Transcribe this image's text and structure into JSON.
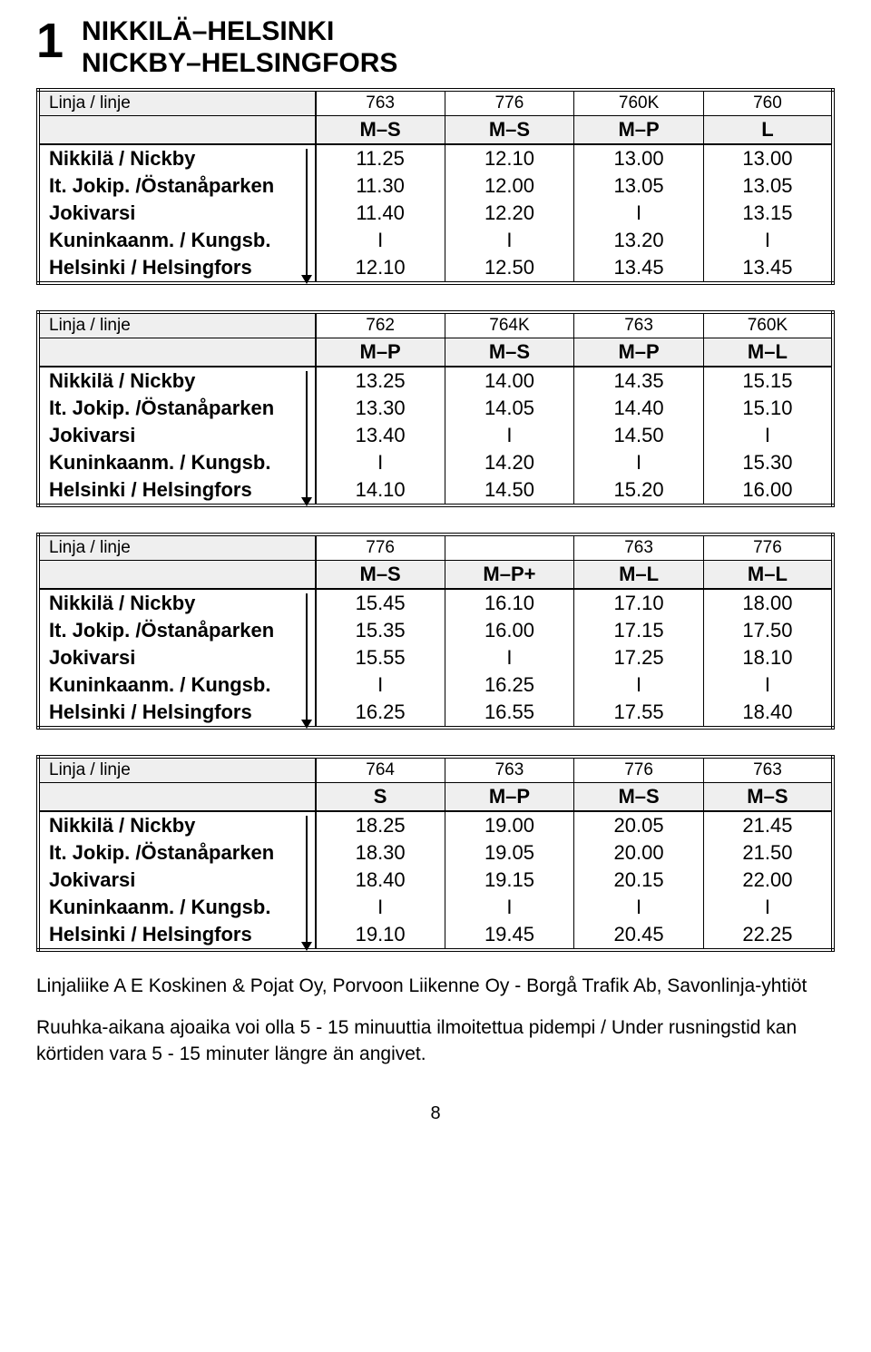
{
  "route_number": "1",
  "title_line1": "NIKKILÄ–HELSINKI",
  "title_line2": "NICKBY–HELSINGFORS",
  "linja_label": "Linja / linje",
  "stops": [
    "Nikkilä / Nickby",
    "It. Jokip. /Östanåparken",
    "Jokivarsi",
    "Kuninkaanm. / Kungsb.",
    "Helsinki / Helsingfors"
  ],
  "tables": [
    {
      "lines": [
        "763",
        "776",
        "760K",
        "760"
      ],
      "days": [
        "M–S",
        "M–S",
        "M–P",
        "L"
      ],
      "rows": [
        [
          "11.25",
          "12.10",
          "13.00",
          "13.00"
        ],
        [
          "11.30",
          "12.00",
          "13.05",
          "13.05"
        ],
        [
          "11.40",
          "12.20",
          "I",
          "13.15"
        ],
        [
          "I",
          "I",
          "13.20",
          "I"
        ],
        [
          "12.10",
          "12.50",
          "13.45",
          "13.45"
        ]
      ]
    },
    {
      "lines": [
        "762",
        "764K",
        "763",
        "760K"
      ],
      "days": [
        "M–P",
        "M–S",
        "M–P",
        "M–L"
      ],
      "rows": [
        [
          "13.25",
          "14.00",
          "14.35",
          "15.15"
        ],
        [
          "13.30",
          "14.05",
          "14.40",
          "15.10"
        ],
        [
          "13.40",
          "I",
          "14.50",
          "I"
        ],
        [
          "I",
          "14.20",
          "I",
          "15.30"
        ],
        [
          "14.10",
          "14.50",
          "15.20",
          "16.00"
        ]
      ]
    },
    {
      "lines": [
        "776",
        "",
        "763",
        "776"
      ],
      "days": [
        "M–S",
        "M–P+",
        "M–L",
        "M–L"
      ],
      "rows": [
        [
          "15.45",
          "16.10",
          "17.10",
          "18.00"
        ],
        [
          "15.35",
          "16.00",
          "17.15",
          "17.50"
        ],
        [
          "15.55",
          "I",
          "17.25",
          "18.10"
        ],
        [
          "I",
          "16.25",
          "I",
          "I"
        ],
        [
          "16.25",
          "16.55",
          "17.55",
          "18.40"
        ]
      ]
    },
    {
      "lines": [
        "764",
        "763",
        "776",
        "763"
      ],
      "days": [
        "S",
        "M–P",
        "M–S",
        "M–S"
      ],
      "rows": [
        [
          "18.25",
          "19.00",
          "20.05",
          "21.45"
        ],
        [
          "18.30",
          "19.05",
          "20.00",
          "21.50"
        ],
        [
          "18.40",
          "19.15",
          "20.15",
          "22.00"
        ],
        [
          "I",
          "I",
          "I",
          "I"
        ],
        [
          "19.10",
          "19.45",
          "20.45",
          "22.25"
        ]
      ]
    }
  ],
  "note1": "Linjaliike A E Koskinen & Pojat Oy, Porvoon Liikenne Oy - Borgå Trafik Ab, Savonlinja-yhtiöt",
  "note2": "Ruuhka-aikana ajoaika voi olla 5 - 15 minuuttia ilmoitettua pidempi / Under rusningstid kan körtiden vara 5 - 15 minuter längre än angivet.",
  "page": "8"
}
